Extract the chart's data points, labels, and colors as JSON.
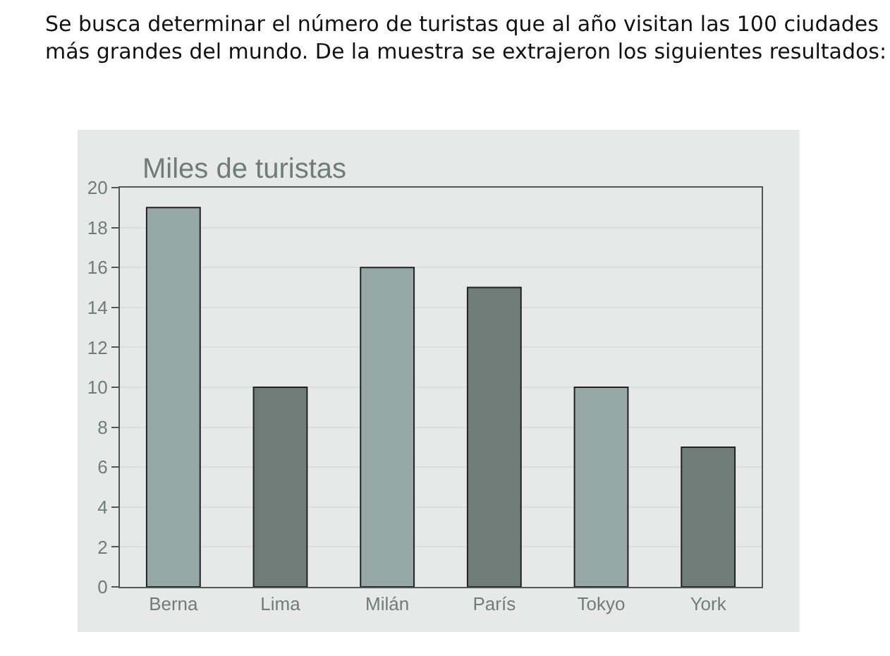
{
  "chart_data": {
    "type": "bar",
    "title": "Miles de turistas",
    "annotations": [
      "Se busca determinar el número de turistas que al año visitan las 100 ciudades\nmás grandes del mundo. De la muestra se extrajeron los siguientes resultados:"
    ],
    "categories": [
      "Berna",
      "Lima",
      "Milán",
      "París",
      "Tokyo",
      "York"
    ],
    "values": [
      19,
      10,
      16,
      15,
      10,
      7
    ],
    "colors": [
      "#95a8a5",
      "#6f7d79",
      "#95a8a5",
      "#6f7d79",
      "#95a8a5",
      "#6f7d79"
    ],
    "ylim": [
      0,
      20
    ],
    "yticks": [
      0,
      2,
      4,
      6,
      8,
      10,
      12,
      14,
      16,
      18,
      20
    ],
    "grid": "y",
    "legend": false
  }
}
